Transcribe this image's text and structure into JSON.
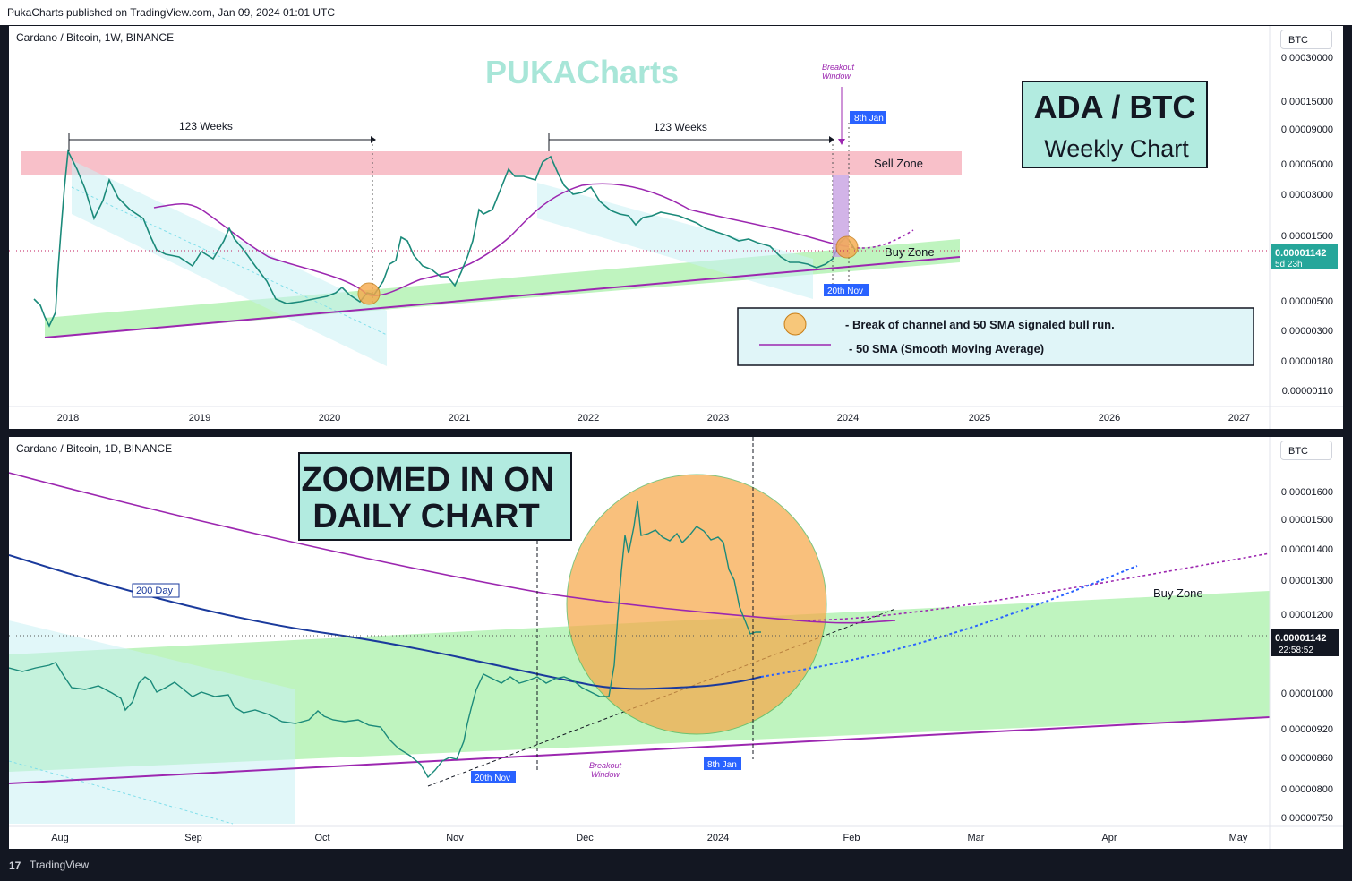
{
  "header": {
    "publish_text": "PukaCharts published on TradingView.com, Jan 09, 2024 01:01 UTC"
  },
  "footer": {
    "brand": "TradingView",
    "logo_glyph": "17"
  },
  "colors": {
    "sma50": "#9c27b0",
    "sma200": "#1a3a9c",
    "sell_zone": "#f7b5bf",
    "buy_zone": "#a9f0a9",
    "channel": "#b2ebf2",
    "circle": "#f7a94a",
    "price_tag": "#26a69a",
    "label_bg": "#2962ff",
    "candle_up": "#26a69a",
    "candle_down": "#26a69a"
  },
  "charts": {
    "weekly": {
      "symbol": "Cardano / Bitcoin, 1W, BINANCE",
      "currency": "BTC",
      "watermark": "PUKACharts",
      "title_box": {
        "line1": "ADA / BTC",
        "line2": "Weekly Chart"
      },
      "y_ticks": [
        "0.00030000",
        "0.00015000",
        "0.00009000",
        "0.00005000",
        "0.00003000",
        "0.00001500",
        "0.00000500",
        "0.00000300",
        "0.00000180",
        "0.00000110"
      ],
      "x_ticks": [
        "2018",
        "2019",
        "2020",
        "2021",
        "2022",
        "2023",
        "2024",
        "2025",
        "2026",
        "2027"
      ],
      "price_tag": {
        "value": "0.00001142",
        "sub": "5d 23h"
      },
      "annotations": {
        "weeks_1": "123 Weeks",
        "weeks_2": "123 Weeks",
        "breakout": [
          "Breakout",
          "Window"
        ],
        "date_8jan": "8th Jan",
        "date_20nov": "20th Nov",
        "sell_zone": "Sell Zone",
        "buy_zone": "Buy Zone"
      },
      "legend": {
        "item1": "- Break of channel and 50 SMA signaled bull run.",
        "item2": "- 50 SMA (Smooth Moving Average)"
      }
    },
    "daily": {
      "symbol": "Cardano / Bitcoin, 1D, BINANCE",
      "currency": "BTC",
      "title_box": {
        "line1": "ZOOMED IN ON",
        "line2": "DAILY CHART"
      },
      "y_ticks": [
        "0.00001600",
        "0.00001500",
        "0.00001400",
        "0.00001300",
        "0.00001200",
        "0.00001000",
        "0.00000920",
        "0.00000860",
        "0.00000800",
        "0.00000750"
      ],
      "x_ticks": [
        "Aug",
        "Sep",
        "Oct",
        "Nov",
        "Dec",
        "2024",
        "Feb",
        "Mar",
        "Apr",
        "May"
      ],
      "price_tag": {
        "value": "0.00001142",
        "sub": "22:58:52"
      },
      "annotations": {
        "ma200": "200 Day",
        "breakout": [
          "Breakout",
          "Window"
        ],
        "date_20nov": "20th Nov",
        "date_8jan": "8th Jan",
        "buy_zone": "Buy Zone"
      }
    }
  },
  "chart_data": [
    {
      "type": "candlestick",
      "title": "Cardano / Bitcoin, 1W, BINANCE",
      "y_scale": "log",
      "ylim": [
        1.1e-06,
        0.0003
      ],
      "x": [
        "2017-11",
        "2018-01",
        "2018-05",
        "2018-09",
        "2019-01",
        "2019-06",
        "2019-09",
        "2020-01",
        "2020-04",
        "2020-07",
        "2020-10",
        "2021-01",
        "2021-04",
        "2021-08",
        "2021-12",
        "2022-04",
        "2022-08",
        "2022-12",
        "2023-04",
        "2023-08",
        "2023-11",
        "2024-01"
      ],
      "close": [
        5.5e-06,
        7.5e-05,
        3.5e-05,
        2e-05,
        1.4e-05,
        1.6e-05,
        6.5e-06,
        6e-06,
        5.6e-06,
        9.5e-06,
        7.5e-06,
        7e-06,
        3e-05,
        6e-05,
        3.8e-05,
        2.8e-05,
        2.5e-05,
        1.9e-05,
        1.4e-05,
        1e-05,
        9.5e-06,
        1.14e-05
      ],
      "sma50": [
        null,
        null,
        null,
        null,
        3.2e-05,
        2.6e-05,
        1.4e-05,
        9e-06,
        6e-06,
        6.2e-06,
        7.2e-06,
        8.5e-06,
        1.8e-05,
        3e-05,
        3.8e-05,
        3.6e-05,
        3.1e-05,
        2.4e-05,
        1.9e-05,
        1.5e-05,
        1.2e-05,
        1.12e-05
      ]
    },
    {
      "type": "candlestick",
      "title": "Cardano / Bitcoin, 1D, BINANCE",
      "y_scale": "log",
      "ylim": [
        7.4e-06,
        1.68e-05
      ],
      "x": [
        "2023-07-25",
        "2023-08-01",
        "2023-08-15",
        "2023-09-01",
        "2023-09-15",
        "2023-10-01",
        "2023-10-15",
        "2023-10-25",
        "2023-11-01",
        "2023-11-10",
        "2023-11-20",
        "2023-12-01",
        "2023-12-05",
        "2023-12-10",
        "2023-12-20",
        "2023-12-28",
        "2024-01-04",
        "2024-01-08"
      ],
      "close": [
        1.05e-05,
        1.06e-05,
        1.03e-05,
        1.02e-05,
        1.01e-05,
        9.7e-06,
        9.5e-06,
        8.3e-06,
        8.8e-06,
        1e-05,
        1.02e-05,
        1e-05,
        1.03e-05,
        1.58e-05,
        1.49e-05,
        1.47e-05,
        1.15e-05,
        1.14e-05
      ],
      "sma50": [
        1.58e-05,
        1.56e-05,
        1.5e-05,
        1.45e-05,
        1.4e-05,
        1.35e-05,
        1.31e-05,
        1.28e-05,
        1.26e-05,
        1.24e-05,
        1.22e-05,
        1.21e-05,
        1.2e-05,
        1.19e-05,
        1.18e-05,
        1.17e-05,
        1.17e-05,
        1.17e-05
      ],
      "sma200": [
        1.32e-05,
        1.29e-05,
        1.24e-05,
        1.19e-05,
        1.14e-05,
        1.1e-05,
        1.07e-05,
        1.05e-05,
        1.04e-05,
        1.03e-05,
        1.02e-05,
        1.01e-05,
        1e-05,
        1e-05,
        1e-05,
        1.01e-05,
        1.02e-05,
        1.02e-05
      ]
    }
  ]
}
